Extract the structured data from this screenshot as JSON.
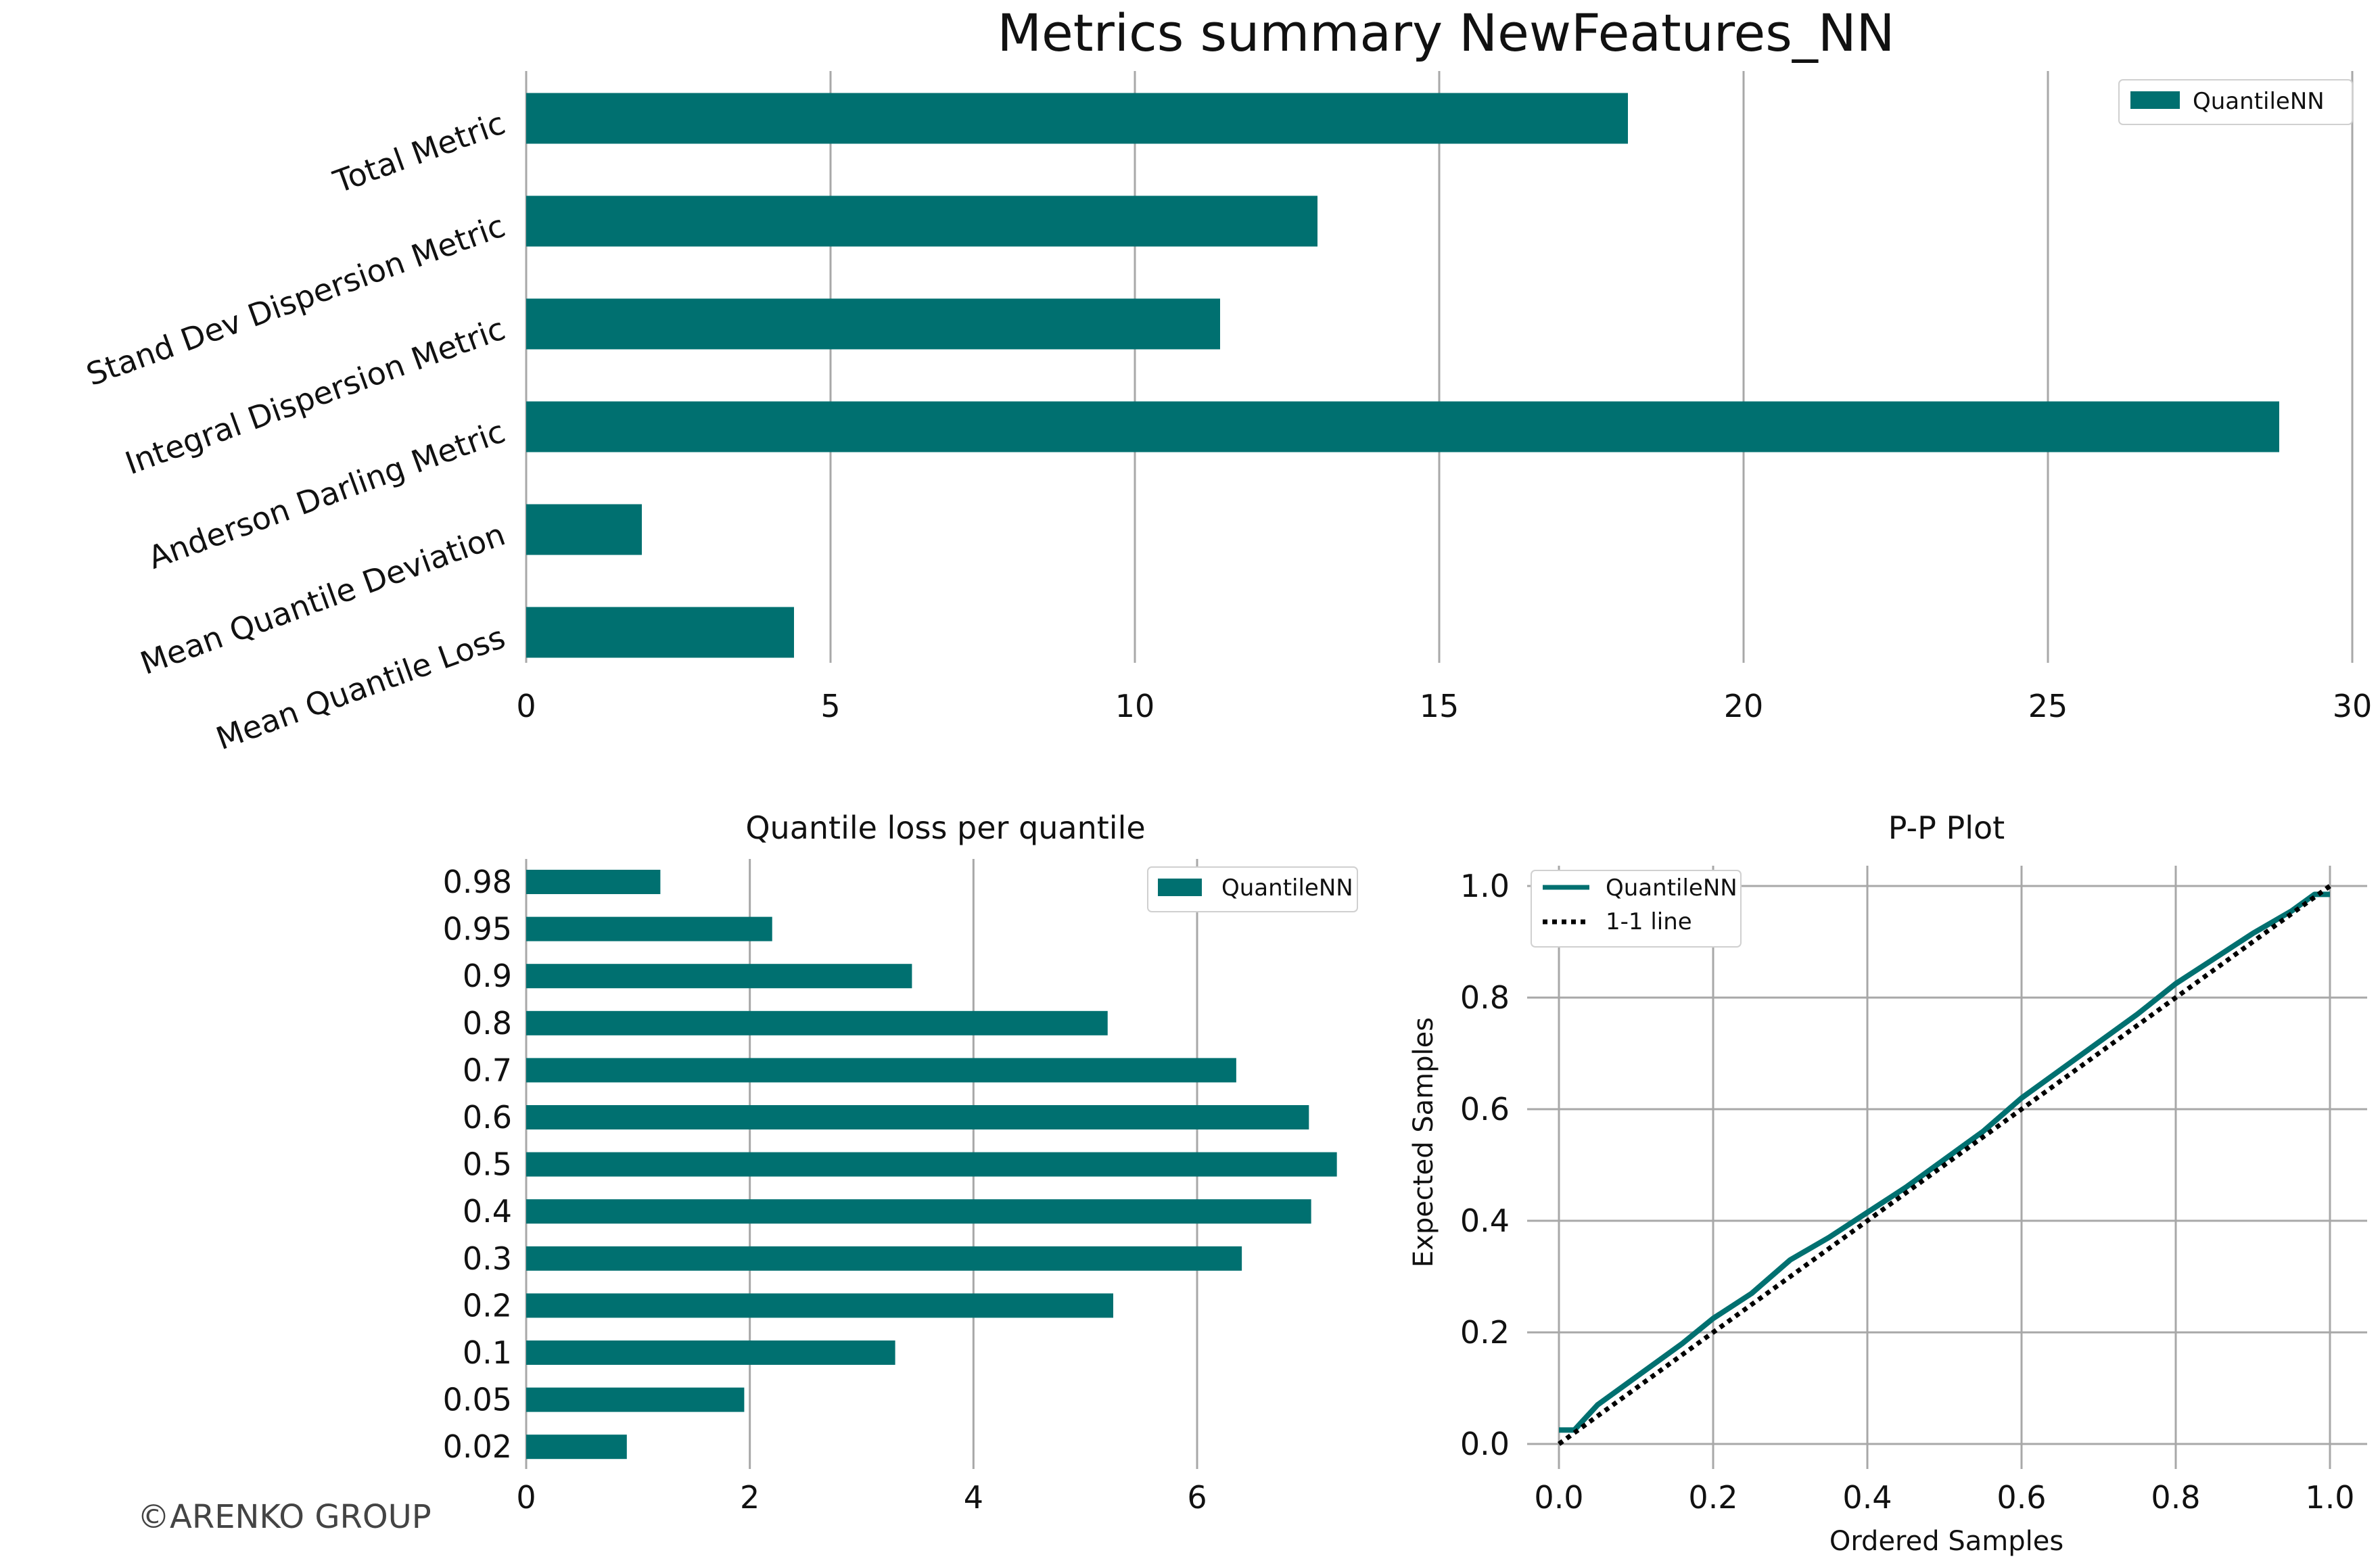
{
  "colors": {
    "bar": "#007070",
    "grid": "#a8a8a8",
    "one_line": "#000000",
    "watermark": "#444444"
  },
  "watermark": "©ARENKO GROUP",
  "chart_data": [
    {
      "type": "bar",
      "orientation": "horizontal",
      "title": "Metrics summary NewFeatures_NN",
      "categories": [
        "Total Metric",
        "Stand Dev Dispersion Metric",
        "Integral Dispersion Metric",
        "Anderson Darling Metric",
        "Mean Quantile Deviation",
        "Mean Quantile Loss"
      ],
      "series": [
        {
          "name": "QuantileNN",
          "values": [
            18.1,
            13.0,
            11.4,
            28.8,
            1.9,
            4.4
          ]
        }
      ],
      "xlim": [
        0,
        30
      ],
      "xticks": [
        0,
        5,
        10,
        15,
        20,
        25,
        30
      ],
      "grid": "vertical",
      "legend": "top-right"
    },
    {
      "type": "bar",
      "orientation": "horizontal",
      "title": "Quantile loss per quantile",
      "categories": [
        "0.98",
        "0.95",
        "0.9",
        "0.8",
        "0.7",
        "0.6",
        "0.5",
        "0.4",
        "0.3",
        "0.2",
        "0.1",
        "0.05",
        "0.02"
      ],
      "series": [
        {
          "name": "QuantileNN",
          "values": [
            1.2,
            2.2,
            3.45,
            5.2,
            6.35,
            7.0,
            7.25,
            7.02,
            6.4,
            5.25,
            3.3,
            1.95,
            0.9
          ]
        }
      ],
      "xlim": [
        0,
        7.5
      ],
      "xticks": [
        "0",
        "2",
        "4",
        "6"
      ],
      "grid": "vertical",
      "legend": "top-right"
    },
    {
      "type": "line",
      "title": "P-P Plot",
      "xlabel": "Ordered Samples",
      "ylabel": "Expected Samples",
      "xlim": [
        0,
        1
      ],
      "ylim": [
        0,
        1
      ],
      "xticks": [
        "0.0",
        "0.2",
        "0.4",
        "0.6",
        "0.8",
        "1.0"
      ],
      "yticks": [
        "0.0",
        "0.2",
        "0.4",
        "0.6",
        "0.8",
        "1.0"
      ],
      "grid": "both",
      "legend": "top-left",
      "series": [
        {
          "name": "QuantileNN",
          "style": "solid",
          "x": [
            0,
            0.005,
            0.02,
            0.03,
            0.05,
            0.07,
            0.1,
            0.13,
            0.16,
            0.2,
            0.25,
            0.3,
            0.35,
            0.4,
            0.45,
            0.5,
            0.55,
            0.6,
            0.65,
            0.7,
            0.75,
            0.8,
            0.85,
            0.9,
            0.95,
            0.98,
            1.0
          ],
          "y": [
            0.025,
            0.025,
            0.025,
            0.04,
            0.07,
            0.09,
            0.12,
            0.15,
            0.18,
            0.225,
            0.27,
            0.33,
            0.37,
            0.415,
            0.46,
            0.51,
            0.56,
            0.62,
            0.67,
            0.72,
            0.77,
            0.825,
            0.87,
            0.915,
            0.955,
            0.985,
            0.985
          ]
        },
        {
          "name": "1-1 line",
          "style": "dotted",
          "x": [
            0,
            1
          ],
          "y": [
            0,
            1
          ]
        }
      ]
    }
  ]
}
